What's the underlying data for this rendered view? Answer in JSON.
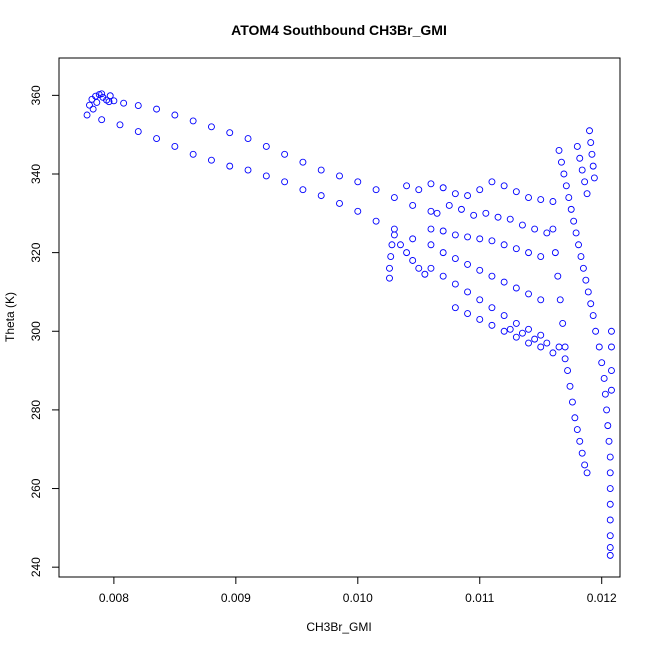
{
  "chart_data": {
    "type": "scatter",
    "title": "ATOM4 Southbound CH3Br_GMI",
    "xlabel": "CH3Br_GMI",
    "ylabel": "Theta (K)",
    "xlim": [
      0.00755,
      0.01215
    ],
    "ylim": [
      237.5,
      369.5
    ],
    "x_ticks": [
      0.008,
      0.009,
      0.01,
      0.011,
      0.012
    ],
    "x_tick_labels": [
      "0.008",
      "0.009",
      "0.010",
      "0.011",
      "0.012"
    ],
    "y_ticks": [
      240,
      260,
      280,
      300,
      320,
      340,
      360
    ],
    "y_tick_labels": [
      "240",
      "260",
      "280",
      "300",
      "320",
      "340",
      "360"
    ],
    "grid": false,
    "marker": "open-circle",
    "point_color": "#0000ff",
    "series": [
      {
        "points": [
          [
            0.00778,
            355.0
          ],
          [
            0.0078,
            357.5
          ],
          [
            0.00782,
            359.0
          ],
          [
            0.00785,
            359.8
          ],
          [
            0.00788,
            360.2
          ],
          [
            0.00791,
            359.5
          ],
          [
            0.00794,
            358.8
          ],
          [
            0.00797,
            359.9
          ],
          [
            0.008,
            358.6
          ],
          [
            0.00783,
            356.5
          ],
          [
            0.00786,
            358.2
          ],
          [
            0.0079,
            360.4
          ],
          [
            0.00796,
            358.4
          ],
          [
            0.00808,
            358.0
          ],
          [
            0.0082,
            357.4
          ],
          [
            0.00835,
            356.5
          ],
          [
            0.0085,
            355.0
          ],
          [
            0.00865,
            353.5
          ],
          [
            0.0088,
            352.0
          ],
          [
            0.00895,
            350.5
          ],
          [
            0.0091,
            349.0
          ],
          [
            0.00925,
            347.0
          ],
          [
            0.0094,
            345.0
          ],
          [
            0.00955,
            343.0
          ],
          [
            0.0097,
            341.0
          ],
          [
            0.00985,
            339.5
          ],
          [
            0.01,
            338.0
          ],
          [
            0.01015,
            336.0
          ],
          [
            0.0103,
            334.0
          ],
          [
            0.01045,
            332.0
          ],
          [
            0.0106,
            330.5
          ],
          [
            0.0079,
            353.8
          ],
          [
            0.00805,
            352.5
          ],
          [
            0.0082,
            350.8
          ],
          [
            0.00835,
            349.0
          ],
          [
            0.0085,
            347.0
          ],
          [
            0.00865,
            345.0
          ],
          [
            0.0088,
            343.5
          ],
          [
            0.00895,
            342.0
          ],
          [
            0.0091,
            341.0
          ],
          [
            0.00925,
            339.5
          ],
          [
            0.0094,
            338.0
          ],
          [
            0.00955,
            336.0
          ],
          [
            0.0097,
            334.5
          ],
          [
            0.00985,
            332.5
          ],
          [
            0.01,
            330.5
          ],
          [
            0.01015,
            328.0
          ],
          [
            0.0103,
            326.0
          ],
          [
            0.01045,
            323.5
          ],
          [
            0.01026,
            313.5
          ],
          [
            0.01026,
            316.0
          ],
          [
            0.01027,
            319.0
          ],
          [
            0.01028,
            322.0
          ],
          [
            0.0103,
            324.5
          ],
          [
            0.01035,
            322.0
          ],
          [
            0.0104,
            320.0
          ],
          [
            0.01045,
            318.0
          ],
          [
            0.0105,
            316.0
          ],
          [
            0.01055,
            314.5
          ],
          [
            0.0104,
            337.0
          ],
          [
            0.0105,
            336.0
          ],
          [
            0.0106,
            337.5
          ],
          [
            0.0107,
            336.5
          ],
          [
            0.0108,
            335.0
          ],
          [
            0.0109,
            334.5
          ],
          [
            0.011,
            336.0
          ],
          [
            0.0111,
            338.0
          ],
          [
            0.0112,
            337.0
          ],
          [
            0.0113,
            335.5
          ],
          [
            0.0114,
            334.0
          ],
          [
            0.0115,
            333.5
          ],
          [
            0.0116,
            333.0
          ],
          [
            0.01065,
            330.0
          ],
          [
            0.01075,
            332.0
          ],
          [
            0.01085,
            331.0
          ],
          [
            0.01095,
            329.5
          ],
          [
            0.01105,
            330.0
          ],
          [
            0.01115,
            329.0
          ],
          [
            0.01125,
            328.5
          ],
          [
            0.01135,
            327.0
          ],
          [
            0.01145,
            326.0
          ],
          [
            0.01155,
            325.0
          ],
          [
            0.0106,
            326.0
          ],
          [
            0.0107,
            325.5
          ],
          [
            0.0108,
            324.5
          ],
          [
            0.0109,
            324.0
          ],
          [
            0.011,
            323.5
          ],
          [
            0.0111,
            323.0
          ],
          [
            0.0112,
            322.0
          ],
          [
            0.0113,
            321.0
          ],
          [
            0.0114,
            320.0
          ],
          [
            0.0115,
            319.0
          ],
          [
            0.0106,
            322.0
          ],
          [
            0.0107,
            320.0
          ],
          [
            0.0108,
            318.5
          ],
          [
            0.0109,
            317.0
          ],
          [
            0.011,
            315.5
          ],
          [
            0.0111,
            314.0
          ],
          [
            0.0112,
            312.5
          ],
          [
            0.0113,
            311.0
          ],
          [
            0.0114,
            309.5
          ],
          [
            0.0115,
            308.0
          ],
          [
            0.0106,
            316.0
          ],
          [
            0.0107,
            314.0
          ],
          [
            0.0108,
            312.0
          ],
          [
            0.0109,
            310.0
          ],
          [
            0.011,
            308.0
          ],
          [
            0.0111,
            306.0
          ],
          [
            0.0112,
            304.0
          ],
          [
            0.0113,
            302.0
          ],
          [
            0.0114,
            300.5
          ],
          [
            0.0115,
            299.0
          ],
          [
            0.0108,
            306.0
          ],
          [
            0.0109,
            304.5
          ],
          [
            0.011,
            303.0
          ],
          [
            0.0111,
            301.5
          ],
          [
            0.0112,
            300.0
          ],
          [
            0.0113,
            298.5
          ],
          [
            0.0114,
            297.0
          ],
          [
            0.0115,
            296.0
          ],
          [
            0.0116,
            294.5
          ],
          [
            0.0117,
            293.0
          ],
          [
            0.01125,
            300.5
          ],
          [
            0.01135,
            299.5
          ],
          [
            0.01145,
            298.0
          ],
          [
            0.01155,
            297.0
          ],
          [
            0.01165,
            296.0
          ],
          [
            0.01165,
            346.0
          ],
          [
            0.01167,
            343.0
          ],
          [
            0.01169,
            340.0
          ],
          [
            0.01171,
            337.0
          ],
          [
            0.01173,
            334.0
          ],
          [
            0.01175,
            331.0
          ],
          [
            0.01177,
            328.0
          ],
          [
            0.01179,
            325.0
          ],
          [
            0.01181,
            322.0
          ],
          [
            0.01183,
            319.0
          ],
          [
            0.01185,
            316.0
          ],
          [
            0.01187,
            313.0
          ],
          [
            0.01189,
            310.0
          ],
          [
            0.01191,
            307.0
          ],
          [
            0.01193,
            304.0
          ],
          [
            0.0118,
            347.0
          ],
          [
            0.01182,
            344.0
          ],
          [
            0.01184,
            341.0
          ],
          [
            0.01186,
            338.0
          ],
          [
            0.01188,
            335.0
          ],
          [
            0.0119,
            351.0
          ],
          [
            0.01191,
            348.0
          ],
          [
            0.01192,
            345.0
          ],
          [
            0.01193,
            342.0
          ],
          [
            0.01194,
            339.0
          ],
          [
            0.0116,
            326.0
          ],
          [
            0.01162,
            320.0
          ],
          [
            0.01164,
            314.0
          ],
          [
            0.01166,
            308.0
          ],
          [
            0.01168,
            302.0
          ],
          [
            0.0117,
            296.0
          ],
          [
            0.01172,
            290.0
          ],
          [
            0.01174,
            286.0
          ],
          [
            0.01176,
            282.0
          ],
          [
            0.01178,
            278.0
          ],
          [
            0.0118,
            275.0
          ],
          [
            0.01182,
            272.0
          ],
          [
            0.01184,
            269.0
          ],
          [
            0.01186,
            266.0
          ],
          [
            0.01188,
            264.0
          ],
          [
            0.01195,
            300.0
          ],
          [
            0.01198,
            296.0
          ],
          [
            0.012,
            292.0
          ],
          [
            0.01202,
            288.0
          ],
          [
            0.01203,
            284.0
          ],
          [
            0.01204,
            280.0
          ],
          [
            0.01205,
            276.0
          ],
          [
            0.01206,
            272.0
          ],
          [
            0.01207,
            268.0
          ],
          [
            0.01207,
            264.0
          ],
          [
            0.01207,
            260.0
          ],
          [
            0.01207,
            256.0
          ],
          [
            0.01207,
            252.0
          ],
          [
            0.01207,
            248.0
          ],
          [
            0.01207,
            245.0
          ],
          [
            0.01207,
            243.0
          ],
          [
            0.01208,
            300.0
          ],
          [
            0.01208,
            296.0
          ],
          [
            0.01208,
            290.0
          ],
          [
            0.01208,
            285.0
          ]
        ]
      }
    ]
  }
}
